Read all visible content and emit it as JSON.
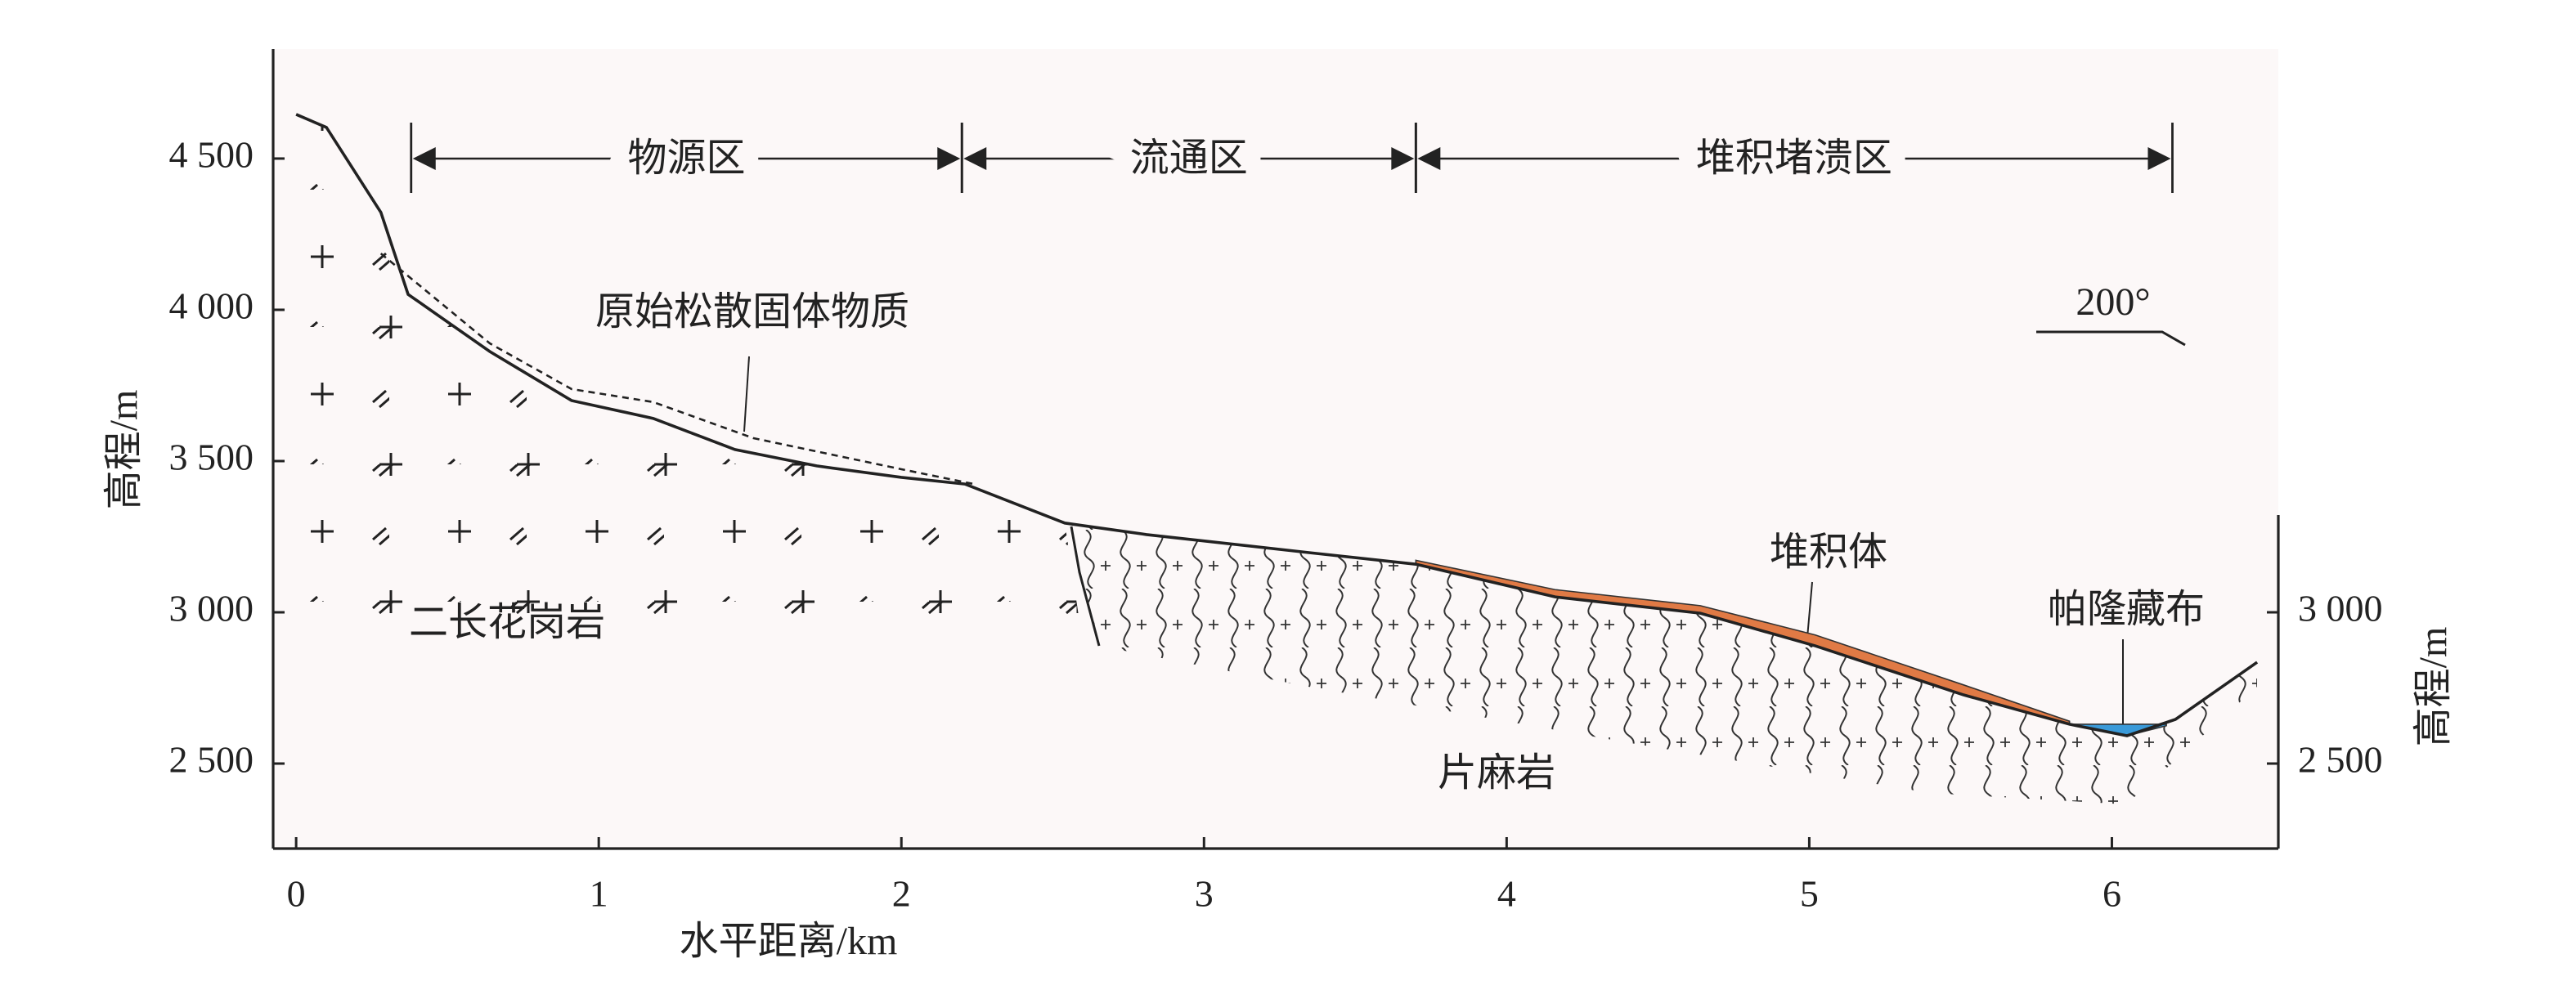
{
  "chart_data": {
    "type": "profile",
    "xlabel": "水平距离/km",
    "ylabel": "高程/m",
    "y2label": "高程/m",
    "xlim": [
      -0.076,
      6.55
    ],
    "ylim": [
      2219,
      4862
    ],
    "y2lim": [
      2219,
      4862
    ],
    "xticks": [
      0,
      1,
      2,
      3,
      4,
      5,
      6
    ],
    "yticks": [
      {
        "value": 2500,
        "label": "2 500"
      },
      {
        "value": 3000,
        "label": "3 000"
      },
      {
        "value": 3500,
        "label": "3 500"
      },
      {
        "value": 4000,
        "label": "4 000"
      },
      {
        "value": 4500,
        "label": "4 500"
      }
    ],
    "y2ticks": [
      {
        "value": 2500,
        "label": "2 500"
      },
      {
        "value": 3000,
        "label": "3 000"
      }
    ],
    "series": [
      {
        "color": "#222222",
        "dash": false,
        "x": [
          0,
          0.1,
          0.28,
          0.37,
          0.64,
          0.91,
          1.18,
          1.45,
          1.72,
          2.0,
          2.21,
          2.54,
          2.81,
          3.35,
          3.7,
          4.16,
          4.64,
          5.02,
          5.51,
          5.86,
          6.05,
          6.21,
          6.48
        ],
        "values": [
          4646,
          4603,
          4322,
          4051,
          3862,
          3700,
          3641,
          3538,
          3484,
          3446,
          3424,
          3295,
          3257,
          3197,
          3159,
          3051,
          2997,
          2889,
          2727,
          2630,
          2592,
          2646,
          2835
        ]
      },
      {
        "color": "#222222",
        "dash": true,
        "label": "原始松散固体物质",
        "x": [
          0.28,
          0.64,
          0.91,
          1.18,
          1.51,
          2.0,
          2.24
        ],
        "values": [
          4186,
          3889,
          3738,
          3695,
          3576,
          3473,
          3424
        ]
      }
    ],
    "deposit": {
      "label": "堆积体",
      "color": "#e07a45",
      "x": [
        3.7,
        4.16,
        4.64,
        5.02,
        5.51,
        5.86
      ],
      "top": [
        3172,
        3075,
        3022,
        2925,
        2760,
        2640
      ],
      "bottom": [
        3159,
        3051,
        2997,
        2889,
        2727,
        2630
      ]
    },
    "river": {
      "label": "帕隆藏布",
      "color": "#3a9ad9",
      "x": [
        5.86,
        6.05,
        6.18
      ],
      "top": [
        2630,
        2630,
        2630
      ],
      "bottom": [
        2630,
        2592,
        2625
      ]
    },
    "zones": [
      {
        "name": "物源区",
        "start": 0.38,
        "end": 2.2
      },
      {
        "name": "流通区",
        "start": 2.2,
        "end": 3.7
      },
      {
        "name": "堆积堵溃区",
        "start": 3.7,
        "end": 6.2
      }
    ],
    "annotations": {
      "granite": "二长花岗岩",
      "gneiss": "片麻岩",
      "orientation": "200°"
    }
  }
}
